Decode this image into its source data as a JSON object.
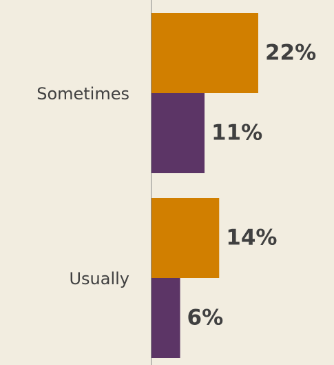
{
  "chart_data": {
    "type": "barh",
    "categories": [
      "Sometimes",
      "Usually"
    ],
    "series": [
      {
        "color": "#d17f00",
        "values": [
          22,
          14
        ],
        "value_labels": [
          "22%",
          "14%"
        ]
      },
      {
        "color": "#5c3566",
        "values": [
          11,
          6
        ],
        "value_labels": [
          "11%",
          "6%"
        ]
      }
    ]
  }
}
